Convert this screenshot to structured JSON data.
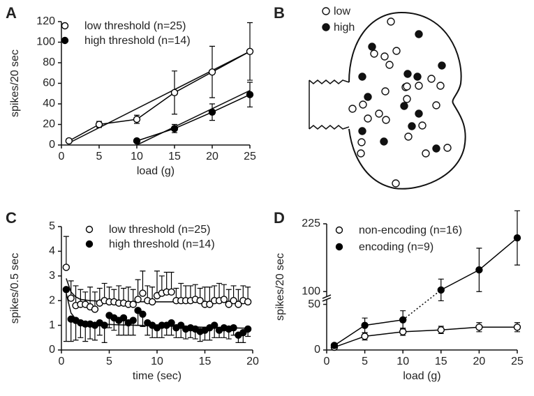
{
  "chart_data": [
    {
      "type": "line",
      "title": "A",
      "xlabel": "load (g)",
      "ylabel": "spikes/20 sec",
      "xlim": [
        0,
        25
      ],
      "xticks": [
        0,
        5,
        10,
        15,
        20,
        25
      ],
      "ylim": [
        0,
        120
      ],
      "yticks": [
        0,
        20,
        40,
        60,
        80,
        100,
        120
      ],
      "connect": true,
      "legend": "upper left",
      "series": [
        {
          "name": "low threshold (n=25)",
          "color": "#000000",
          "marker": "open",
          "error_direction": "both",
          "x": [
            1,
            5,
            10,
            15,
            20,
            25
          ],
          "values": [
            4,
            20,
            25,
            51,
            71,
            91
          ],
          "errors": [
            2,
            3,
            4,
            21,
            25,
            28
          ]
        },
        {
          "name": "high threshold (n=14)",
          "color": "#000000",
          "marker": "filled",
          "error_direction": "both",
          "x": [
            10,
            15,
            20,
            25
          ],
          "values": [
            4,
            16,
            32,
            49
          ],
          "errors": [
            1,
            4,
            8,
            12
          ]
        }
      ],
      "fits": [
        {
          "x": [
            1,
            25
          ],
          "values": [
            2,
            91
          ]
        },
        {
          "x": [
            10,
            25
          ],
          "values": [
            0,
            53
          ]
        }
      ]
    },
    {
      "type": "scatter",
      "title": "C",
      "xlabel": "time (sec)",
      "ylabel": "spikes/0.5 sec",
      "xlim": [
        0,
        20
      ],
      "xticks": [
        0,
        5,
        10,
        15,
        20
      ],
      "ylim": [
        0,
        5
      ],
      "yticks": [
        0,
        1,
        2,
        3,
        4,
        5
      ],
      "connect": false,
      "legend": "upper left",
      "x": [
        0.5,
        1,
        1.5,
        2,
        2.5,
        3,
        3.5,
        4,
        4.5,
        5,
        5.5,
        6,
        6.5,
        7,
        7.5,
        8,
        8.5,
        9,
        9.5,
        10,
        10.5,
        11,
        11.5,
        12,
        12.5,
        13,
        13.5,
        14,
        14.5,
        15,
        15.5,
        16,
        16.5,
        17,
        17.5,
        18,
        18.5,
        19,
        19.5
      ],
      "series": [
        {
          "name": "low threshold (n=25)",
          "color": "#000000",
          "marker": "open",
          "error_direction": "up",
          "values": [
            3.35,
            2.1,
            1.8,
            1.85,
            1.85,
            1.75,
            1.65,
            1.9,
            2.0,
            1.95,
            1.95,
            1.9,
            1.9,
            1.85,
            1.85,
            2.05,
            2.3,
            2.0,
            1.95,
            2.2,
            2.3,
            2.35,
            2.35,
            2.0,
            2.0,
            2.0,
            2.0,
            2.05,
            2.0,
            1.85,
            1.85,
            2.0,
            2.0,
            2.05,
            1.85,
            2.0,
            1.85,
            2.0,
            1.95
          ],
          "errors": [
            1.25,
            0.7,
            0.8,
            0.6,
            0.5,
            0.8,
            0.7,
            0.6,
            0.7,
            0.6,
            0.5,
            0.7,
            0.6,
            0.7,
            0.6,
            0.8,
            0.9,
            0.6,
            0.6,
            1.0,
            0.7,
            0.8,
            0.8,
            0.5,
            0.7,
            0.6,
            0.6,
            0.6,
            0.5,
            0.7,
            0.7,
            0.6,
            0.7,
            0.6,
            0.6,
            0.6,
            0.6,
            0.6,
            0.6
          ]
        },
        {
          "name": "high threshold (n=14)",
          "color": "#000000",
          "marker": "filled",
          "error_direction": "down",
          "values": [
            2.45,
            1.25,
            1.2,
            1.1,
            1.05,
            1.05,
            1.0,
            1.1,
            1.0,
            1.4,
            1.3,
            1.2,
            1.3,
            1.1,
            1.2,
            1.6,
            1.45,
            1.1,
            1.0,
            0.9,
            1.0,
            1.0,
            1.1,
            0.9,
            1.0,
            0.85,
            0.9,
            0.85,
            0.75,
            0.8,
            0.9,
            1.0,
            0.8,
            0.9,
            0.85,
            0.9,
            0.6,
            0.7,
            0.85
          ],
          "errors": [
            2.1,
            0.9,
            0.8,
            0.6,
            0.7,
            0.6,
            0.6,
            0.5,
            0.7,
            0.5,
            0.5,
            0.6,
            0.7,
            0.5,
            0.6,
            0.6,
            0.5,
            0.5,
            0.5,
            0.4,
            0.5,
            0.4,
            0.5,
            0.4,
            0.5,
            0.4,
            0.4,
            0.4,
            0.4,
            0.4,
            0.5,
            0.5,
            0.3,
            0.4,
            0.4,
            0.3,
            0.3,
            0.4,
            0.3
          ]
        }
      ],
      "fits": [
        {
          "x": [
            0.5,
            1,
            1.5,
            2,
            3,
            4,
            6,
            10,
            15,
            19.5
          ],
          "values": [
            2.9,
            2.35,
            2.15,
            2.05,
            2.0,
            1.98,
            1.96,
            1.95,
            1.95,
            1.95
          ]
        },
        {
          "x": [
            0.5,
            1,
            1.5,
            2,
            3,
            4,
            6,
            10,
            15,
            19.5
          ],
          "values": [
            2.3,
            1.5,
            1.25,
            1.15,
            1.08,
            1.05,
            1.02,
            0.98,
            0.92,
            0.88
          ]
        }
      ]
    },
    {
      "type": "line",
      "title": "D",
      "xlabel": "load (g)",
      "ylabel": "spikes/20 sec",
      "xlim": [
        0,
        25
      ],
      "xticks": [
        0,
        5,
        10,
        15,
        20,
        25
      ],
      "ylim": [
        0,
        225
      ],
      "yticks": [
        0,
        50,
        100,
        225
      ],
      "y_break": [
        55,
        90
      ],
      "connect": true,
      "legend": "upper left",
      "series": [
        {
          "name": "non-encoding (n=16)",
          "color": "#000000",
          "marker": "open",
          "error_direction": "both",
          "x": [
            1,
            5,
            10,
            15,
            20,
            25
          ],
          "values": [
            3,
            15,
            20,
            22,
            25,
            25
          ],
          "errors": [
            2,
            4,
            4,
            4,
            5,
            5
          ]
        },
        {
          "name": "encoding (n=9)",
          "color": "#000000",
          "marker": "filled",
          "error_direction": "both",
          "x": [
            1,
            5,
            10,
            15,
            20,
            25
          ],
          "values": [
            5,
            27,
            33,
            103,
            140,
            199
          ],
          "errors": [
            2,
            8,
            10,
            20,
            40,
            50
          ]
        }
      ]
    }
  ],
  "panel_b": {
    "title": "B",
    "legend": [
      "low",
      "high"
    ]
  }
}
